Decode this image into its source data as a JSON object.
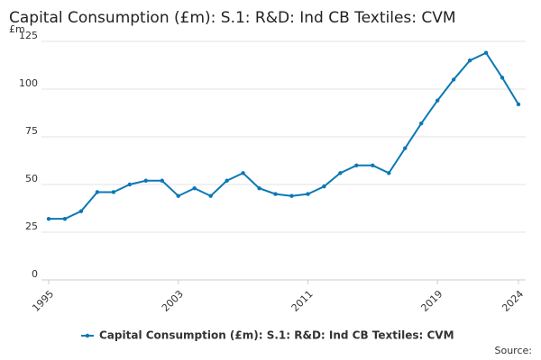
{
  "chart_data": {
    "type": "line",
    "title": "Capital Consumption (£m): S.1: R&D: Ind CB Textiles: CVM",
    "y_unit": "£m",
    "source": "Source:",
    "x": [
      1995,
      1996,
      1997,
      1998,
      1999,
      2000,
      2001,
      2002,
      2003,
      2004,
      2005,
      2006,
      2007,
      2008,
      2009,
      2010,
      2011,
      2012,
      2013,
      2014,
      2015,
      2016,
      2017,
      2018,
      2019,
      2020,
      2021,
      2022,
      2023,
      2024
    ],
    "series": [
      {
        "name": "Capital Consumption (£m): S.1: R&D: Ind CB Textiles: CVM",
        "color": "#0b78b5",
        "values": [
          32,
          32,
          36,
          46,
          46,
          50,
          52,
          52,
          44,
          48,
          44,
          52,
          56,
          48,
          45,
          44,
          45,
          49,
          56,
          60,
          60,
          56,
          69,
          82,
          94,
          105,
          115,
          119,
          106,
          92
        ]
      }
    ],
    "xlim": [
      1995,
      2024
    ],
    "xticks": [
      1995,
      2003,
      2011,
      2019,
      2024
    ],
    "ylim": [
      0,
      125
    ],
    "yticks": [
      0,
      25,
      50,
      75,
      100,
      125
    ],
    "grid": true,
    "legend_position": "bottom"
  }
}
